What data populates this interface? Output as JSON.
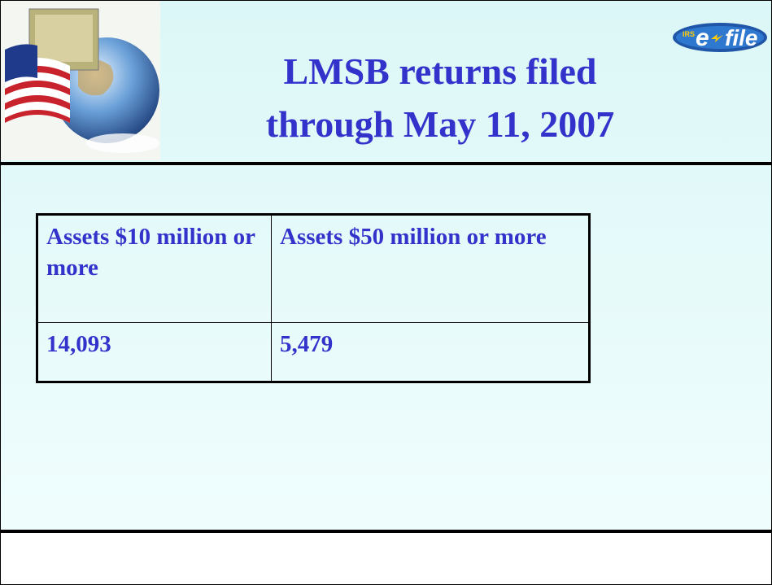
{
  "header": {
    "title_lines": [
      "LMSB returns filed",
      "through May 11, 2007"
    ]
  },
  "logo": {
    "agency": "IRS",
    "prefix": "e",
    "word": "file"
  },
  "table": {
    "header": [
      "Assets $10 million or more",
      "Assets $50 million or more"
    ],
    "rows": [
      [
        "14,093",
        "5,479"
      ]
    ]
  }
}
